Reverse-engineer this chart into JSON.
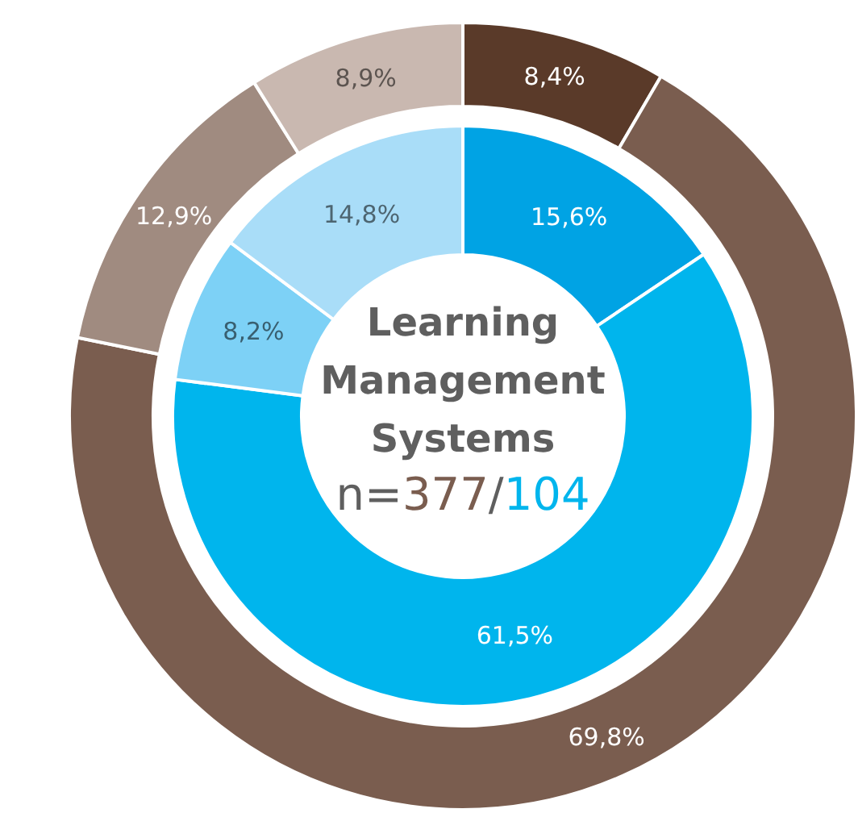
{
  "chart_data": {
    "type": "donut",
    "title": "Learning Management Systems",
    "annotations": [
      "n=377/104"
    ],
    "categories": [
      null,
      null,
      null,
      null
    ],
    "series": [
      {
        "values": [
          8.4,
          69.8,
          12.9,
          8.9
        ],
        "colors": [
          "#5a3a29",
          "#7a5d4f",
          "#a08b80",
          "#c9b8b0"
        ],
        "value_labels": [
          "8,4%",
          "69,8%",
          "12,9%",
          "8,9%"
        ]
      },
      {
        "values": [
          15.6,
          61.5,
          8.2,
          14.8
        ],
        "colors": [
          "#00a3e4",
          "#00b5ed",
          "#7dd1f6",
          "#a9ddf8"
        ],
        "value_labels": [
          "15,6%",
          "61,5%",
          "8,2%",
          "14,8%"
        ]
      }
    ]
  }
}
